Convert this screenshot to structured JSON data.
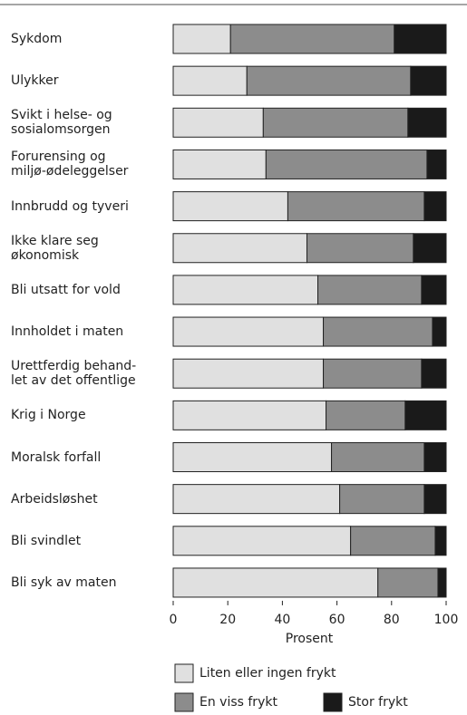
{
  "chart_data": {
    "type": "stacked-bar-horizontal",
    "x_label": "Prosent",
    "categories": [
      "Sykdom",
      "Ulykker",
      "Svikt i helse- og\nsosialomsorgen",
      "Forurensing og\nmiljø-ødeleggelser",
      "Innbrudd og tyveri",
      "Ikke klare seg\nøkonomisk",
      "Bli utsatt for vold",
      "Innholdet i maten",
      "Urettferdig behand-\nlet av det offentlige",
      "Krig i Norge",
      "Moralsk forfall",
      "Arbeidsløshet",
      "Bli svindlet",
      "Bli syk av maten"
    ],
    "series": [
      {
        "name": "Liten eller ingen frykt",
        "color": "#e0e0e0",
        "values": [
          21,
          27,
          33,
          34,
          42,
          49,
          53,
          55,
          55,
          56,
          58,
          61,
          65,
          75
        ]
      },
      {
        "name": "En viss frykt",
        "color": "#8c8c8c",
        "values": [
          60,
          60,
          53,
          59,
          50,
          39,
          38,
          40,
          36,
          29,
          34,
          31,
          31,
          22
        ]
      },
      {
        "name": "Stor frykt",
        "color": "#1a1a1a",
        "values": [
          19,
          13,
          14,
          7,
          8,
          12,
          9,
          5,
          9,
          15,
          8,
          8,
          4,
          3
        ]
      }
    ],
    "xlim": [
      0,
      100
    ],
    "xticks": [
      0,
      20,
      40,
      60,
      80,
      100
    ]
  }
}
